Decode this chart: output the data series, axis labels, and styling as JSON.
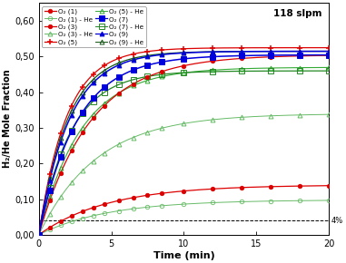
{
  "title_annotation": "118 slpm",
  "xlabel": "Time (min)",
  "ylabel": "H₂/He Mole Fraction",
  "xlim": [
    0,
    20
  ],
  "ylim": [
    0,
    0.65
  ],
  "yticks": [
    0.0,
    0.1,
    0.2,
    0.3,
    0.4,
    0.5,
    0.6
  ],
  "ytick_labels": [
    "0,00",
    "0,10",
    "0,20",
    "0,30",
    "0,40",
    "0,50",
    "0,60"
  ],
  "xticks": [
    0,
    5,
    10,
    15,
    20
  ],
  "dashed_line_y": 0.04,
  "dashed_label": "4%",
  "background_color": "#ffffff",
  "axis_fontsize": 8,
  "tick_fontsize": 7,
  "h2_series": [
    {
      "label": "O₂ (1)",
      "color": "#dd0000",
      "marker": "o",
      "filled": true,
      "a": 0.14,
      "b": 0.21,
      "lw": 0.9
    },
    {
      "label": "O₂ (3)",
      "color": "#dd0000",
      "marker": "o",
      "filled": true,
      "a": 0.505,
      "b": 0.28,
      "lw": 0.9
    },
    {
      "label": "O₂ (5)",
      "color": "#dd0000",
      "marker": "+",
      "filled": true,
      "a": 0.525,
      "b": 0.52,
      "lw": 0.9
    },
    {
      "label": "O₂ (7)",
      "color": "#0000dd",
      "marker": "s",
      "filled": true,
      "a": 0.505,
      "b": 0.38,
      "lw": 1.1
    },
    {
      "label": "O₂ (9)",
      "color": "#0000dd",
      "marker": "^",
      "filled": true,
      "a": 0.515,
      "b": 0.47,
      "lw": 1.1
    }
  ],
  "he_series": [
    {
      "label": "O₂ (1) - He",
      "color": "#66bb66",
      "marker": "o",
      "a": 0.098,
      "b": 0.21,
      "lw": 0.7
    },
    {
      "label": "O₂ (3) - He",
      "color": "#66bb66",
      "marker": "^",
      "a": 0.34,
      "b": 0.25,
      "lw": 0.7
    },
    {
      "label": "O₂ (5) - He",
      "color": "#33aa33",
      "marker": "^",
      "a": 0.47,
      "b": 0.34,
      "lw": 0.8
    },
    {
      "label": "O₂ (7) - He",
      "color": "#228822",
      "marker": "s",
      "a": 0.46,
      "b": 0.45,
      "lw": 0.9
    },
    {
      "label": "O₂ (9) - He",
      "color": "#115511",
      "marker": "^",
      "a": 0.515,
      "b": 0.5,
      "lw": 0.9
    }
  ]
}
